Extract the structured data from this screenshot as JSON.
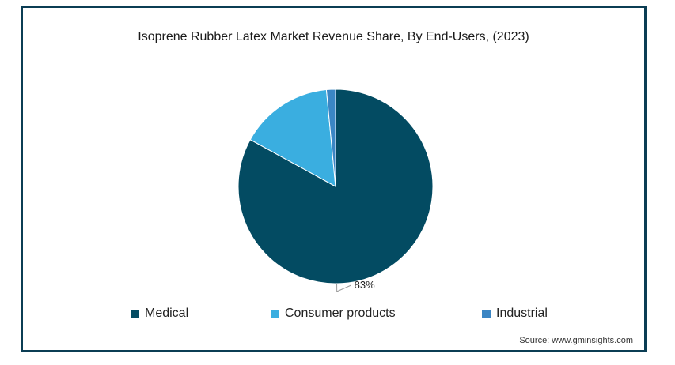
{
  "chart_data": {
    "type": "pie",
    "title": "Isoprene Rubber Latex Market Revenue Share, By End-Users, (2023)",
    "categories": [
      "Medical",
      "Consumer products",
      "Industrial"
    ],
    "values": [
      83,
      15.5,
      1.5
    ],
    "colors": [
      "#034b62",
      "#3aaee0",
      "#3b86c4"
    ],
    "data_labels": [
      "83%",
      "",
      ""
    ],
    "legend_position": "bottom"
  },
  "source": "Source: www.gminsights.com"
}
